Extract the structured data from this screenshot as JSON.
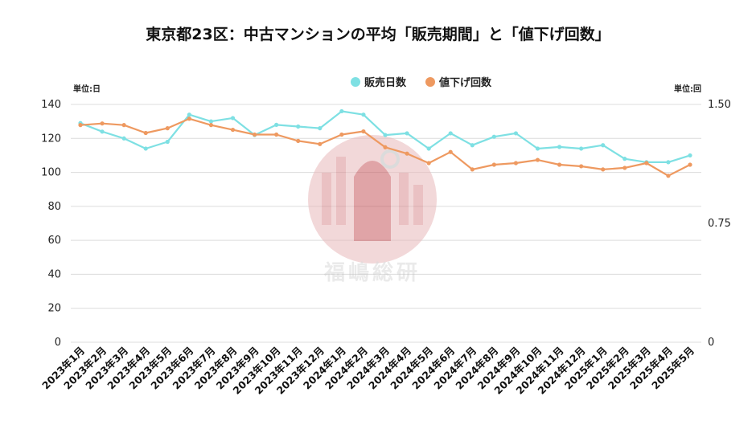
{
  "chart_data": {
    "type": "line",
    "title": "東京都23区：中古マンションの平均「販売期間」と「値下げ回数」",
    "y_left_unit": "単位:日",
    "y_right_unit": "単位:回",
    "y_left_ticks": [
      "0",
      "20",
      "40",
      "60",
      "80",
      "100",
      "120",
      "140"
    ],
    "y_right_ticks": [
      "0",
      "0.75",
      "1.50"
    ],
    "y_left_lim": [
      0,
      140
    ],
    "y_right_lim": [
      0,
      1.5
    ],
    "grid": true,
    "legend_position": "top-center",
    "categories": [
      "2023年1月",
      "2023年2月",
      "2023年3月",
      "2023年4月",
      "2023年5月",
      "2023年6月",
      "2023年7月",
      "2023年8月",
      "2023年9月",
      "2023年10月",
      "2023年11月",
      "2023年12月",
      "2024年1月",
      "2024年2月",
      "2024年3月",
      "2024年4月",
      "2024年5月",
      "2024年6月",
      "2024年7月",
      "2024年8月",
      "2024年9月",
      "2024年10月",
      "2024年11月",
      "2024年12月",
      "2025年1月",
      "2025年2月",
      "2025年3月",
      "2025年4月",
      "2025年5月"
    ],
    "series": [
      {
        "name": "販売日数",
        "axis": "left",
        "color": "#7ee0e3",
        "values": [
          129,
          124,
          120,
          114,
          118,
          134,
          130,
          132,
          122,
          128,
          127,
          126,
          136,
          134,
          122,
          123,
          114,
          123,
          116,
          121,
          123,
          114,
          115,
          114,
          116,
          108,
          106,
          106,
          110
        ]
      },
      {
        "name": "値下げ回数",
        "axis": "right",
        "color": "#ee9960",
        "values": [
          1.37,
          1.38,
          1.37,
          1.32,
          1.35,
          1.41,
          1.37,
          1.34,
          1.31,
          1.31,
          1.27,
          1.25,
          1.31,
          1.33,
          1.23,
          1.19,
          1.13,
          1.2,
          1.09,
          1.12,
          1.13,
          1.15,
          1.12,
          1.11,
          1.09,
          1.1,
          1.13,
          1.05,
          1.12
        ]
      }
    ],
    "watermark_text": "福嶋総研"
  }
}
